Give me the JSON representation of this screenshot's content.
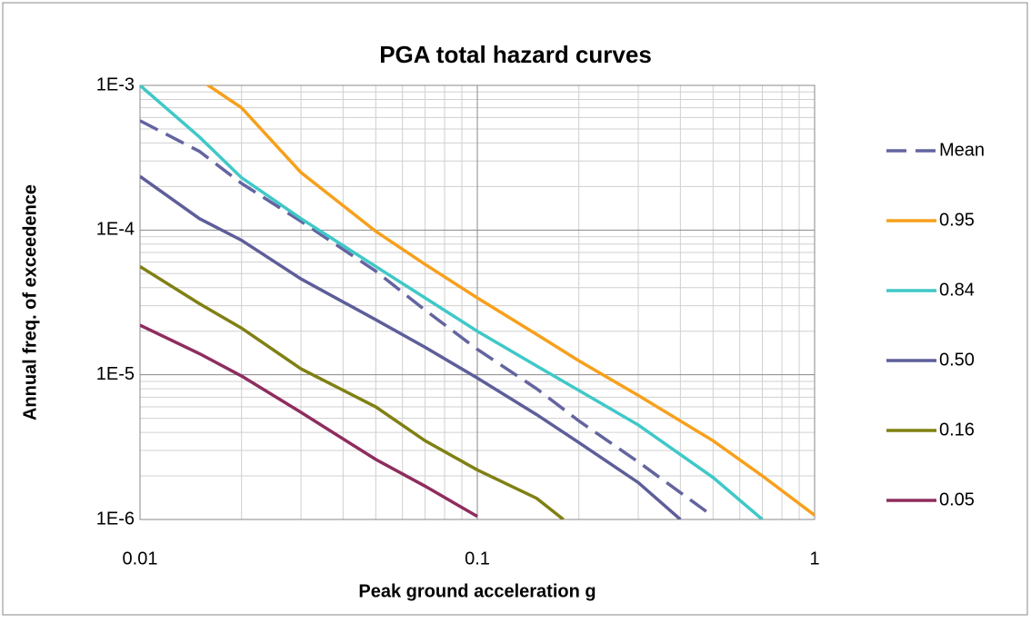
{
  "chart_data": {
    "type": "line",
    "title": "PGA total hazard curves",
    "x_label": "Peak ground acceleration g",
    "y_label": "Annual freq. of exceedence",
    "log_x": true,
    "log_y": true,
    "grid": true,
    "legend": "right",
    "xlim": [
      0.01,
      1
    ],
    "xticks": [
      0.01,
      0.1,
      1
    ],
    "ylim": [
      1e-06,
      0.001
    ],
    "yticks": [
      {
        "value": 1e-06,
        "label": "1E-6"
      },
      {
        "value": 1e-05,
        "label": "1E-5"
      },
      {
        "value": 0.0001,
        "label": "1E-4"
      },
      {
        "value": 0.001,
        "label": "1E-3"
      }
    ],
    "series": [
      {
        "name": "Mean",
        "color": "#6464a0",
        "dashed": true,
        "x": [
          0.01,
          0.015,
          0.02,
          0.03,
          0.05,
          0.07,
          0.1,
          0.15,
          0.2,
          0.3,
          0.5
        ],
        "values": [
          0.00057,
          0.00035,
          0.00021,
          0.000115,
          5.2e-05,
          2.8e-05,
          1.5e-05,
          8e-06,
          4.8e-06,
          2.5e-06,
          1.05e-06
        ]
      },
      {
        "name": "0.95",
        "color": "#f7a01c",
        "dashed": false,
        "x": [
          0.01,
          0.015,
          0.02,
          0.03,
          0.05,
          0.07,
          0.1,
          0.15,
          0.2,
          0.3,
          0.5,
          0.7,
          1
        ],
        "values": [
          0.0016,
          0.0011,
          0.0007,
          0.00025,
          9.8e-05,
          5.8e-05,
          3.4e-05,
          1.9e-05,
          1.25e-05,
          7.2e-06,
          3.5e-06,
          2e-06,
          1.07e-06
        ]
      },
      {
        "name": "0.84",
        "color": "#40c8c8",
        "dashed": false,
        "x": [
          0.01,
          0.015,
          0.02,
          0.03,
          0.05,
          0.07,
          0.1,
          0.15,
          0.2,
          0.3,
          0.5,
          0.7
        ],
        "values": [
          0.001,
          0.00044,
          0.00023,
          0.00012,
          5.6e-05,
          3.4e-05,
          2e-05,
          1.15e-05,
          7.8e-06,
          4.5e-06,
          1.95e-06,
          1e-06
        ]
      },
      {
        "name": "0.50",
        "color": "#5e5e9a",
        "dashed": false,
        "x": [
          0.01,
          0.015,
          0.02,
          0.03,
          0.05,
          0.07,
          0.1,
          0.15,
          0.2,
          0.3,
          0.4
        ],
        "values": [
          0.000235,
          0.00012,
          8.5e-05,
          4.6e-05,
          2.4e-05,
          1.55e-05,
          9.5e-06,
          5.3e-06,
          3.4e-06,
          1.8e-06,
          1e-06
        ]
      },
      {
        "name": "0.16",
        "color": "#808014",
        "dashed": false,
        "x": [
          0.01,
          0.015,
          0.02,
          0.03,
          0.05,
          0.07,
          0.1,
          0.15,
          0.18
        ],
        "values": [
          5.6e-05,
          3.1e-05,
          2.1e-05,
          1.1e-05,
          6e-06,
          3.5e-06,
          2.2e-06,
          1.4e-06,
          1e-06
        ]
      },
      {
        "name": "0.05",
        "color": "#8e2d5e",
        "dashed": false,
        "x": [
          0.01,
          0.015,
          0.02,
          0.03,
          0.05,
          0.07,
          0.1
        ],
        "values": [
          2.2e-05,
          1.4e-05,
          9.8e-06,
          5.5e-06,
          2.6e-06,
          1.7e-06,
          1.05e-06
        ]
      }
    ]
  }
}
